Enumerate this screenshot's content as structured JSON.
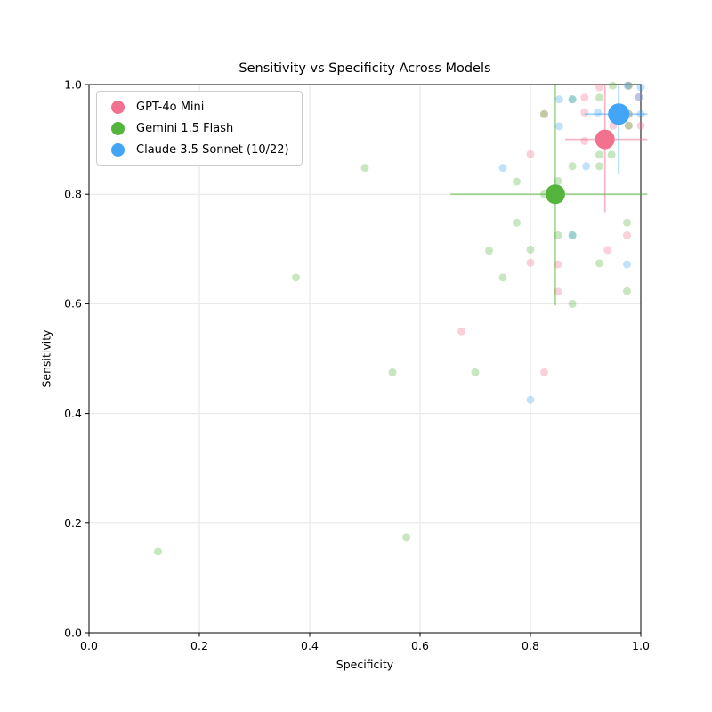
{
  "chart_data": {
    "type": "scatter",
    "title": "Sensitivity vs Specificity Across Models",
    "xlabel": "Specificity",
    "ylabel": "Sensitivity",
    "xlim": [
      0.0,
      1.0
    ],
    "ylim": [
      0.0,
      1.0
    ],
    "x_ticks": [
      0.0,
      0.2,
      0.4,
      0.6,
      0.8,
      1.0
    ],
    "y_ticks": [
      0.0,
      0.2,
      0.4,
      0.6,
      0.8,
      1.0
    ],
    "grid": true,
    "grid_color": "#e6e6e6",
    "legend_position": "upper left",
    "point_radius": 4.5,
    "point_opacity": 0.32,
    "errorbar_opacity": 0.5,
    "series": [
      {
        "name": "GPT-4o Mini",
        "color": "#f1718f",
        "mean": {
          "x": 0.935,
          "y": 0.9
        },
        "x_err": [
          0.863,
          1.012
        ],
        "y_err": [
          0.767,
          1.0
        ],
        "marker_radius": 11,
        "points": [
          [
            0.675,
            0.55
          ],
          [
            0.825,
            0.475
          ],
          [
            0.8,
            0.873
          ],
          [
            0.8,
            0.675
          ],
          [
            0.85,
            0.672
          ],
          [
            0.85,
            0.622
          ],
          [
            0.94,
            0.698
          ],
          [
            0.975,
            0.725
          ],
          [
            0.898,
            0.897
          ],
          [
            0.95,
            0.925
          ],
          [
            1.0,
            0.925
          ],
          [
            0.898,
            0.949
          ],
          [
            0.925,
            0.995
          ],
          [
            0.898,
            0.976
          ],
          [
            0.825,
            0.946
          ],
          [
            0.978,
            0.946
          ],
          [
            0.978,
            0.925
          ],
          [
            0.978,
            0.998
          ],
          [
            0.997,
            0.977
          ]
        ]
      },
      {
        "name": "Gemini 1.5 Flash",
        "color": "#55b43c",
        "mean": {
          "x": 0.845,
          "y": 0.8
        },
        "x_err": [
          0.655,
          1.012
        ],
        "y_err": [
          0.597,
          1.0
        ],
        "marker_radius": 11,
        "points": [
          [
            0.125,
            0.148
          ],
          [
            0.575,
            0.174
          ],
          [
            0.375,
            0.648
          ],
          [
            0.5,
            0.848
          ],
          [
            0.55,
            0.475
          ],
          [
            0.7,
            0.475
          ],
          [
            0.725,
            0.697
          ],
          [
            0.75,
            0.648
          ],
          [
            0.775,
            0.748
          ],
          [
            0.775,
            0.823
          ],
          [
            0.8,
            0.699
          ],
          [
            0.825,
            0.8
          ],
          [
            0.85,
            0.725
          ],
          [
            0.85,
            0.824
          ],
          [
            0.876,
            0.6
          ],
          [
            0.876,
            0.851
          ],
          [
            0.925,
            0.674
          ],
          [
            0.925,
            0.851
          ],
          [
            0.925,
            0.872
          ],
          [
            0.947,
            0.872
          ],
          [
            0.975,
            0.748
          ],
          [
            0.975,
            0.623
          ],
          [
            0.949,
            0.998
          ],
          [
            0.925,
            0.976
          ],
          [
            0.876,
            0.725
          ],
          [
            0.876,
            0.973
          ],
          [
            0.825,
            0.946
          ],
          [
            0.978,
            0.946
          ],
          [
            0.978,
            0.925
          ],
          [
            0.978,
            0.998
          ]
        ]
      },
      {
        "name": "Claude 3.5 Sonnet (10/22)",
        "color": "#42a5f5",
        "mean": {
          "x": 0.96,
          "y": 0.946
        },
        "x_err": [
          0.898,
          1.012
        ],
        "y_err": [
          0.837,
          1.0
        ],
        "marker_radius": 12,
        "points": [
          [
            0.8,
            0.425
          ],
          [
            0.75,
            0.848
          ],
          [
            0.852,
            0.924
          ],
          [
            0.852,
            0.973
          ],
          [
            0.901,
            0.851
          ],
          [
            0.922,
            0.949
          ],
          [
            0.975,
            0.672
          ],
          [
            0.976,
            0.998
          ],
          [
            1.0,
            0.946
          ],
          [
            1.0,
            0.995
          ],
          [
            0.876,
            0.725
          ],
          [
            0.876,
            0.973
          ],
          [
            0.997,
            0.977
          ]
        ]
      }
    ]
  }
}
